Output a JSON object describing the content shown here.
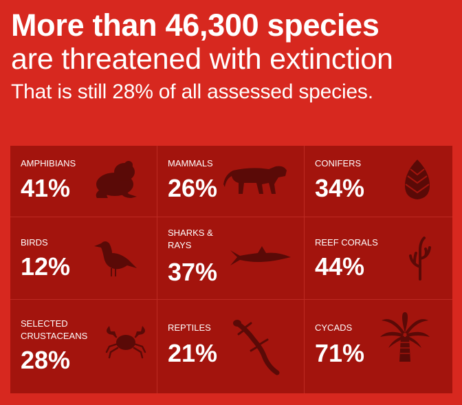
{
  "headline": {
    "line1": "More than 46,300 species",
    "line2": "are threatened with extinction",
    "line3": "That is still 28% of all assessed species."
  },
  "colors": {
    "background": "#d7281f",
    "tile": "#a3140d",
    "icon": "#5a0a07"
  },
  "groups": [
    {
      "label": "AMPHIBIANS",
      "percent": "41%",
      "icon": "frog-icon"
    },
    {
      "label": "MAMMALS",
      "percent": "26%",
      "icon": "tiger-icon"
    },
    {
      "label": "CONIFERS",
      "percent": "34%",
      "icon": "pinecone-icon"
    },
    {
      "label": "BIRDS",
      "percent": "12%",
      "icon": "bird-icon"
    },
    {
      "label": "SHARKS &\nRAYS",
      "percent": "37%",
      "icon": "shark-icon"
    },
    {
      "label": "REEF CORALS",
      "percent": "44%",
      "icon": "coral-icon"
    },
    {
      "label": "SELECTED\nCRUSTACEANS",
      "percent": "28%",
      "icon": "crab-icon"
    },
    {
      "label": "REPTILES",
      "percent": "21%",
      "icon": "lizard-icon"
    },
    {
      "label": "CYCADS",
      "percent": "71%",
      "icon": "cycad-icon"
    }
  ]
}
